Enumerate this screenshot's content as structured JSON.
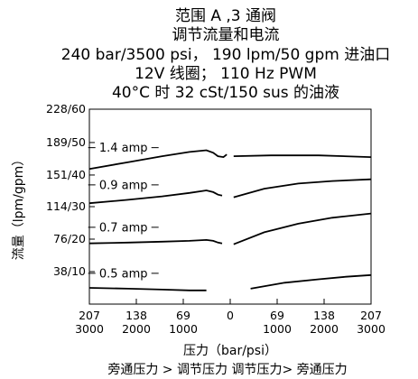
{
  "chart_data": {
    "type": "line",
    "title_lines": [
      "范围 A ,3 通阀",
      "调节流量和电流",
      "240 bar/3500 psi， 190 lpm/50 gpm 进油口",
      "12V 线圈； 110 Hz PWM",
      "40°C 时 32 cSt/150 sus 的油液"
    ],
    "ylabel": "流量（lpm/gpm）",
    "xlabel": "压力（bar/psi）",
    "xlabel_sub": "旁通压力 > 调节压力 调节压力> 旁通压力",
    "ylim": [
      0,
      228
    ],
    "yticks": [
      {
        "value": 38,
        "label": "38/10"
      },
      {
        "value": 76,
        "label": "76/20"
      },
      {
        "value": 114,
        "label": "114/30"
      },
      {
        "value": 151,
        "label": "151/40"
      },
      {
        "value": 189,
        "label": "189/50"
      },
      {
        "value": 228,
        "label": "228/60"
      }
    ],
    "xlim": [
      -207,
      207
    ],
    "xticks": [
      {
        "value": -207,
        "bar": "207",
        "psi": "3000"
      },
      {
        "value": -138,
        "bar": "138",
        "psi": "2000"
      },
      {
        "value": -69,
        "bar": "69",
        "psi": "1000"
      },
      {
        "value": 0,
        "bar": "0",
        "psi": ""
      },
      {
        "value": 69,
        "bar": "69",
        "psi": "1000"
      },
      {
        "value": 138,
        "bar": "138",
        "psi": "2000"
      },
      {
        "value": 207,
        "bar": "207",
        "psi": "3000"
      }
    ],
    "series": [
      {
        "name": "1.4 amp",
        "left": [
          [
            -207,
            158
          ],
          [
            -150,
            166
          ],
          [
            -100,
            173
          ],
          [
            -60,
            178
          ],
          [
            -35,
            180
          ],
          [
            -25,
            177
          ],
          [
            -18,
            173
          ],
          [
            -10,
            172
          ],
          [
            -5,
            175
          ]
        ],
        "right": [
          [
            5,
            173
          ],
          [
            60,
            174
          ],
          [
            130,
            174
          ],
          [
            207,
            172
          ]
        ]
      },
      {
        "name": "0.9 amp",
        "left": [
          [
            -207,
            118
          ],
          [
            -150,
            122
          ],
          [
            -100,
            126
          ],
          [
            -60,
            130
          ],
          [
            -35,
            133
          ],
          [
            -25,
            131
          ],
          [
            -18,
            128
          ],
          [
            -12,
            127
          ]
        ],
        "right": [
          [
            5,
            125
          ],
          [
            50,
            135
          ],
          [
            100,
            141
          ],
          [
            150,
            144
          ],
          [
            207,
            146
          ]
        ]
      },
      {
        "name": "0.7 amp",
        "left": [
          [
            -207,
            71
          ],
          [
            -150,
            72
          ],
          [
            -100,
            73
          ],
          [
            -60,
            74
          ],
          [
            -35,
            75
          ],
          [
            -25,
            74
          ],
          [
            -18,
            72
          ],
          [
            -12,
            71
          ]
        ],
        "right": [
          [
            5,
            70
          ],
          [
            50,
            84
          ],
          [
            100,
            94
          ],
          [
            150,
            101
          ],
          [
            207,
            106
          ]
        ]
      },
      {
        "name": "0.5 amp",
        "left": [
          [
            -207,
            19
          ],
          [
            -150,
            18
          ],
          [
            -100,
            17
          ],
          [
            -60,
            16
          ],
          [
            -35,
            16
          ]
        ],
        "right": [
          [
            30,
            18
          ],
          [
            80,
            25
          ],
          [
            130,
            29
          ],
          [
            170,
            32
          ],
          [
            207,
            34
          ]
        ]
      }
    ]
  }
}
